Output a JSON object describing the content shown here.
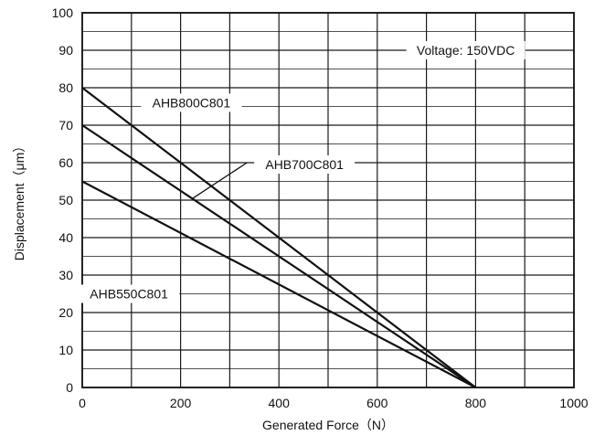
{
  "chart_data": {
    "type": "line",
    "title": "",
    "xlabel": "Generated Force（N）",
    "ylabel": "Displacement（μm）",
    "xlim": [
      0,
      1000
    ],
    "ylim": [
      0,
      100
    ],
    "x_ticks": [
      0,
      200,
      400,
      600,
      800,
      1000
    ],
    "y_ticks": [
      0,
      10,
      20,
      30,
      40,
      50,
      60,
      70,
      80,
      90,
      100
    ],
    "x_minor_step": 100,
    "y_minor_step": 5,
    "grid": true,
    "legend": "none",
    "series": [
      {
        "name": "AHB800C801",
        "x": [
          0,
          800
        ],
        "y": [
          80,
          0
        ]
      },
      {
        "name": "AHB700C801",
        "x": [
          0,
          800
        ],
        "y": [
          70,
          0
        ]
      },
      {
        "name": "AHB550C801",
        "x": [
          0,
          800
        ],
        "y": [
          55,
          0
        ]
      }
    ],
    "annotations": [
      {
        "text": "Voltage: 150VDC"
      },
      {
        "text": "AHB800C801",
        "series": "AHB800C801"
      },
      {
        "text": "AHB700C801",
        "series": "AHB700C801"
      },
      {
        "text": "AHB550C801",
        "series": "AHB550C801"
      }
    ]
  }
}
